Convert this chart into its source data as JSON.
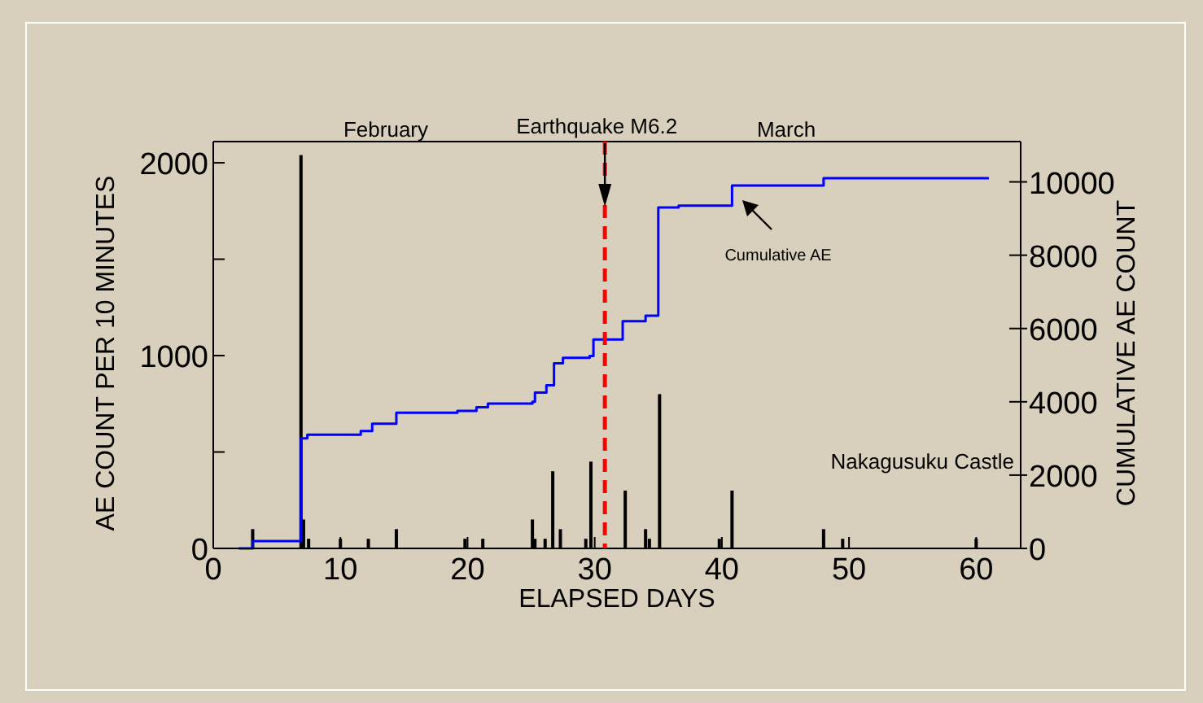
{
  "chart_data": {
    "type": "bar",
    "xlabel": "ELAPSED DAYS",
    "ylabel": "AE COUNT PER 10 MINUTES",
    "y2label": "CUMULATIVE AE COUNT",
    "xlim": [
      0,
      63.5
    ],
    "xticks": [
      0,
      10,
      20,
      30,
      40,
      50,
      60
    ],
    "ylim": [
      0,
      2110
    ],
    "yticks": [
      0,
      {
        "value": 500,
        "label": null
      },
      1000,
      {
        "value": 1500,
        "label": null
      },
      2000
    ],
    "y2lim": [
      0,
      11100
    ],
    "y2ticks": [
      0,
      2000,
      4000,
      6000,
      8000,
      10000
    ],
    "series": [
      {
        "color": "#000000",
        "x": [
          3.1,
          6.9,
          7.1,
          7.5,
          10.0,
          12.2,
          14.4,
          19.8,
          21.2,
          25.1,
          25.3,
          26.1,
          26.7,
          27.3,
          29.3,
          29.7,
          32.4,
          34.0,
          34.3,
          35.1,
          39.8,
          40.8,
          48.0,
          49.5,
          60.0
        ],
        "values": [
          100,
          2040,
          150,
          50,
          50,
          50,
          100,
          50,
          50,
          150,
          50,
          50,
          400,
          100,
          50,
          450,
          300,
          100,
          50,
          800,
          50,
          300,
          100,
          50,
          50
        ]
      },
      {
        "type": "step",
        "color": "#0000ff",
        "axis": "y2",
        "x": [
          2.0,
          3.1,
          6.9,
          7.4,
          11.6,
          12.5,
          14.4,
          19.2,
          20.7,
          21.6,
          25.1,
          25.3,
          26.2,
          26.8,
          27.5,
          29.6,
          29.9,
          32.2,
          34.0,
          35.0,
          36.6,
          40.8,
          48.0,
          61.0
        ],
        "values": [
          0,
          200,
          3000,
          3100,
          3200,
          3400,
          3700,
          3750,
          3850,
          3950,
          4000,
          4250,
          4450,
          5050,
          5200,
          5250,
          5700,
          6200,
          6350,
          9300,
          9350,
          9900,
          10100,
          10100
        ]
      }
    ],
    "ref_lines": [
      {
        "axis": "x",
        "value": 30.8,
        "label": "Earthquake M6.2",
        "color": "#ff0000",
        "line_style": "dashed"
      }
    ],
    "annotations": [
      "Cumulative AE",
      "Nakagusuku Castle",
      "February",
      "March"
    ]
  }
}
